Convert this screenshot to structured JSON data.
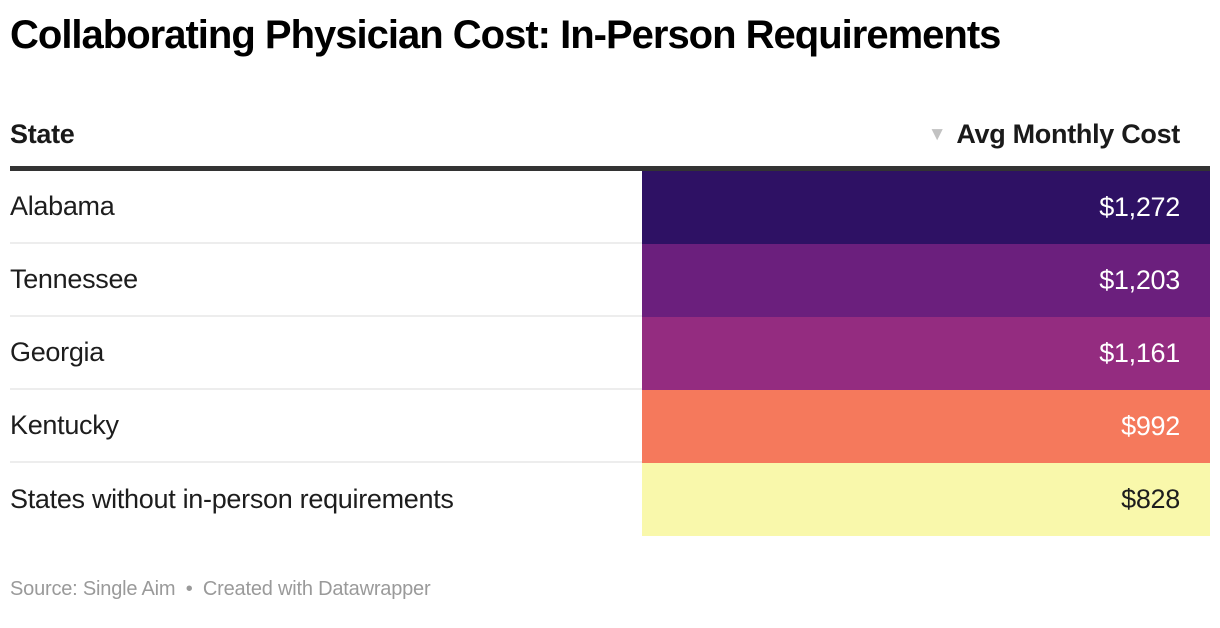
{
  "title": "Collaborating Physician Cost: In-Person Requirements",
  "table": {
    "columns": {
      "state_label": "State",
      "value_label": "Avg Monthly Cost"
    },
    "sort_icon": "▼",
    "rows": [
      {
        "state": "Alabama",
        "value": "$1,272",
        "bg": "#2e1164",
        "fg": "#ffffff"
      },
      {
        "state": "Tennessee",
        "value": "$1,203",
        "bg": "#6b1f7d",
        "fg": "#ffffff"
      },
      {
        "state": "Georgia",
        "value": "$1,161",
        "bg": "#942c80",
        "fg": "#ffffff"
      },
      {
        "state": "Kentucky",
        "value": "$992",
        "bg": "#f5795c",
        "fg": "#ffffff"
      },
      {
        "state": "States without in-person requirements",
        "value": "$828",
        "bg": "#f9f8ab",
        "fg": "#1d1d1d"
      }
    ]
  },
  "footer": {
    "source_prefix": "Source: Single Aim",
    "separator": "•",
    "attribution": "Created with Datawrapper"
  },
  "colors": {
    "header_rule": "#333333",
    "row_separator": "#ededed",
    "sort_arrow": "#c2c2c2",
    "footer_text": "#9a9a9a"
  },
  "chart_data": {
    "type": "table",
    "title": "Collaborating Physician Cost: In-Person Requirements",
    "columns": [
      "State",
      "Avg Monthly Cost"
    ],
    "categories": [
      "Alabama",
      "Tennessee",
      "Georgia",
      "Kentucky",
      "States without in-person requirements"
    ],
    "values": [
      1272,
      1203,
      1161,
      992,
      828
    ],
    "value_format": "USD, thousands separator, no decimals",
    "sorted": "descending by Avg Monthly Cost",
    "cell_fill_colors": [
      "#2e1164",
      "#6b1f7d",
      "#942c80",
      "#f5795c",
      "#f9f8ab"
    ],
    "source": "Single Aim",
    "attribution": "Created with Datawrapper"
  }
}
